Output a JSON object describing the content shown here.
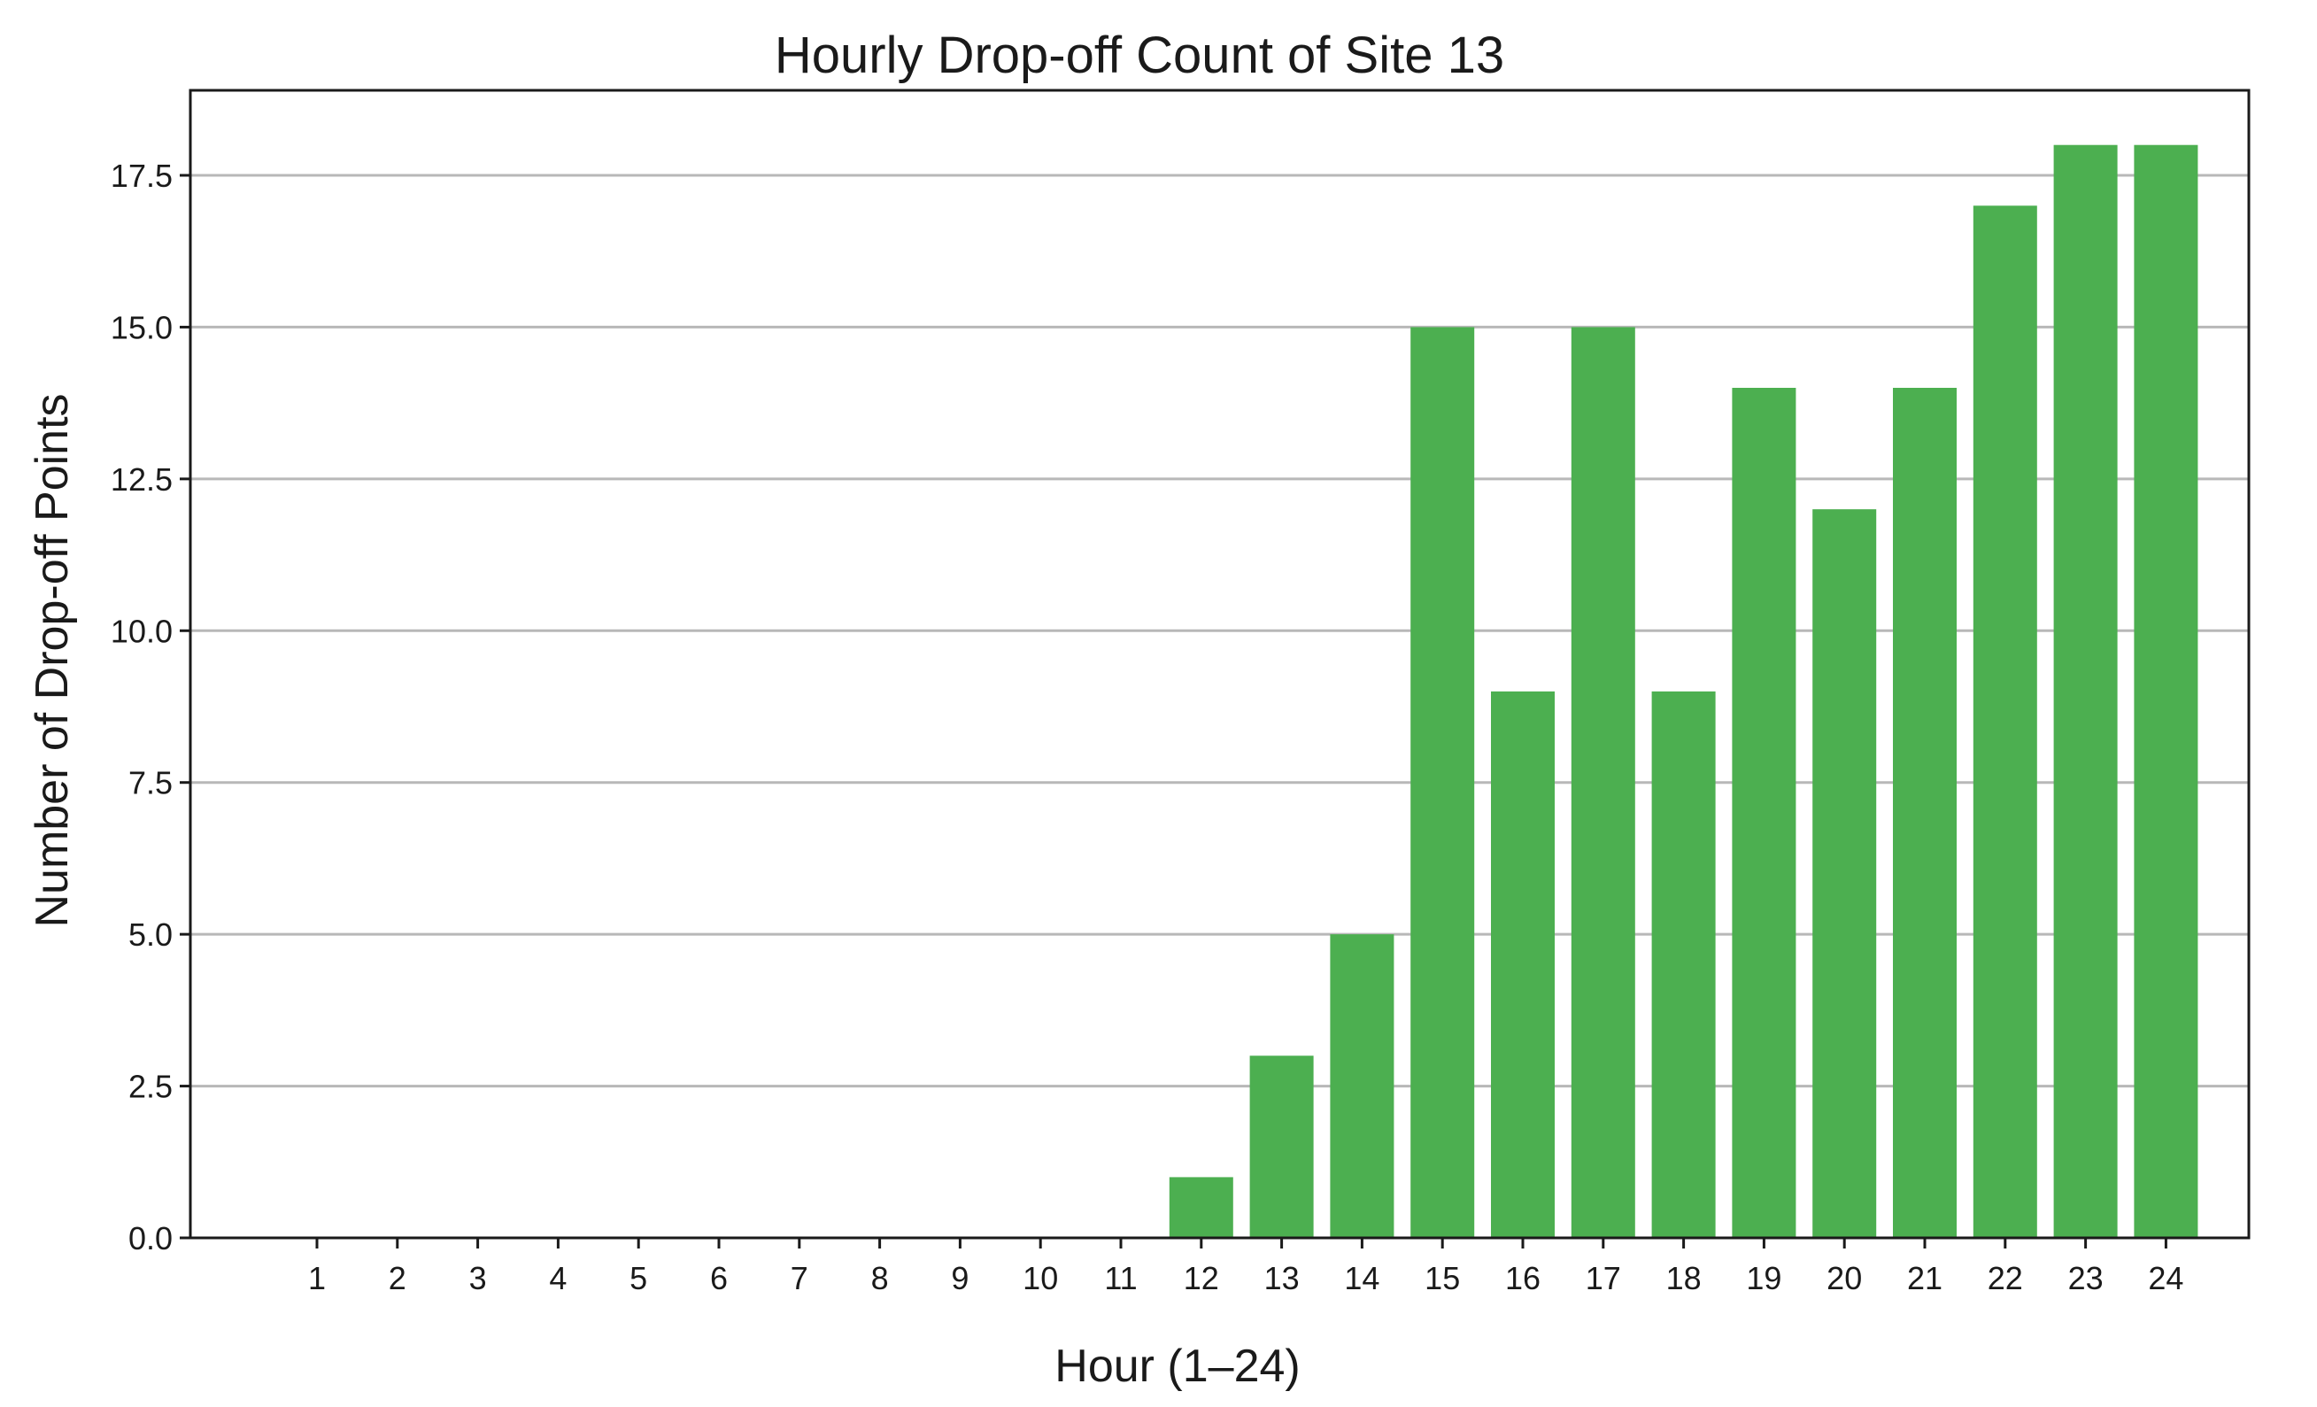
{
  "chart_data": {
    "type": "bar",
    "title": "Hourly Drop-off Count of Site 13",
    "xlabel": "Hour (1–24)",
    "ylabel": "Number of Drop-off Points",
    "categories": [
      "1",
      "2",
      "3",
      "4",
      "5",
      "6",
      "7",
      "8",
      "9",
      "10",
      "11",
      "12",
      "13",
      "14",
      "15",
      "16",
      "17",
      "18",
      "19",
      "20",
      "21",
      "22",
      "23",
      "24"
    ],
    "values": [
      0,
      0,
      0,
      0,
      0,
      0,
      0,
      0,
      0,
      0,
      0,
      1,
      3,
      5,
      15,
      9,
      15,
      9,
      14,
      12,
      14,
      17,
      18,
      18
    ],
    "ylim": [
      0,
      18.9
    ],
    "yticks": [
      0.0,
      2.5,
      5.0,
      7.5,
      10.0,
      12.5,
      15.0,
      17.5
    ],
    "ytick_labels": [
      "0.0",
      "2.5",
      "5.0",
      "7.5",
      "10.0",
      "12.5",
      "15.0",
      "17.5"
    ],
    "grid": "horizontal",
    "bar_color": "#4caf50",
    "legend": "none"
  }
}
